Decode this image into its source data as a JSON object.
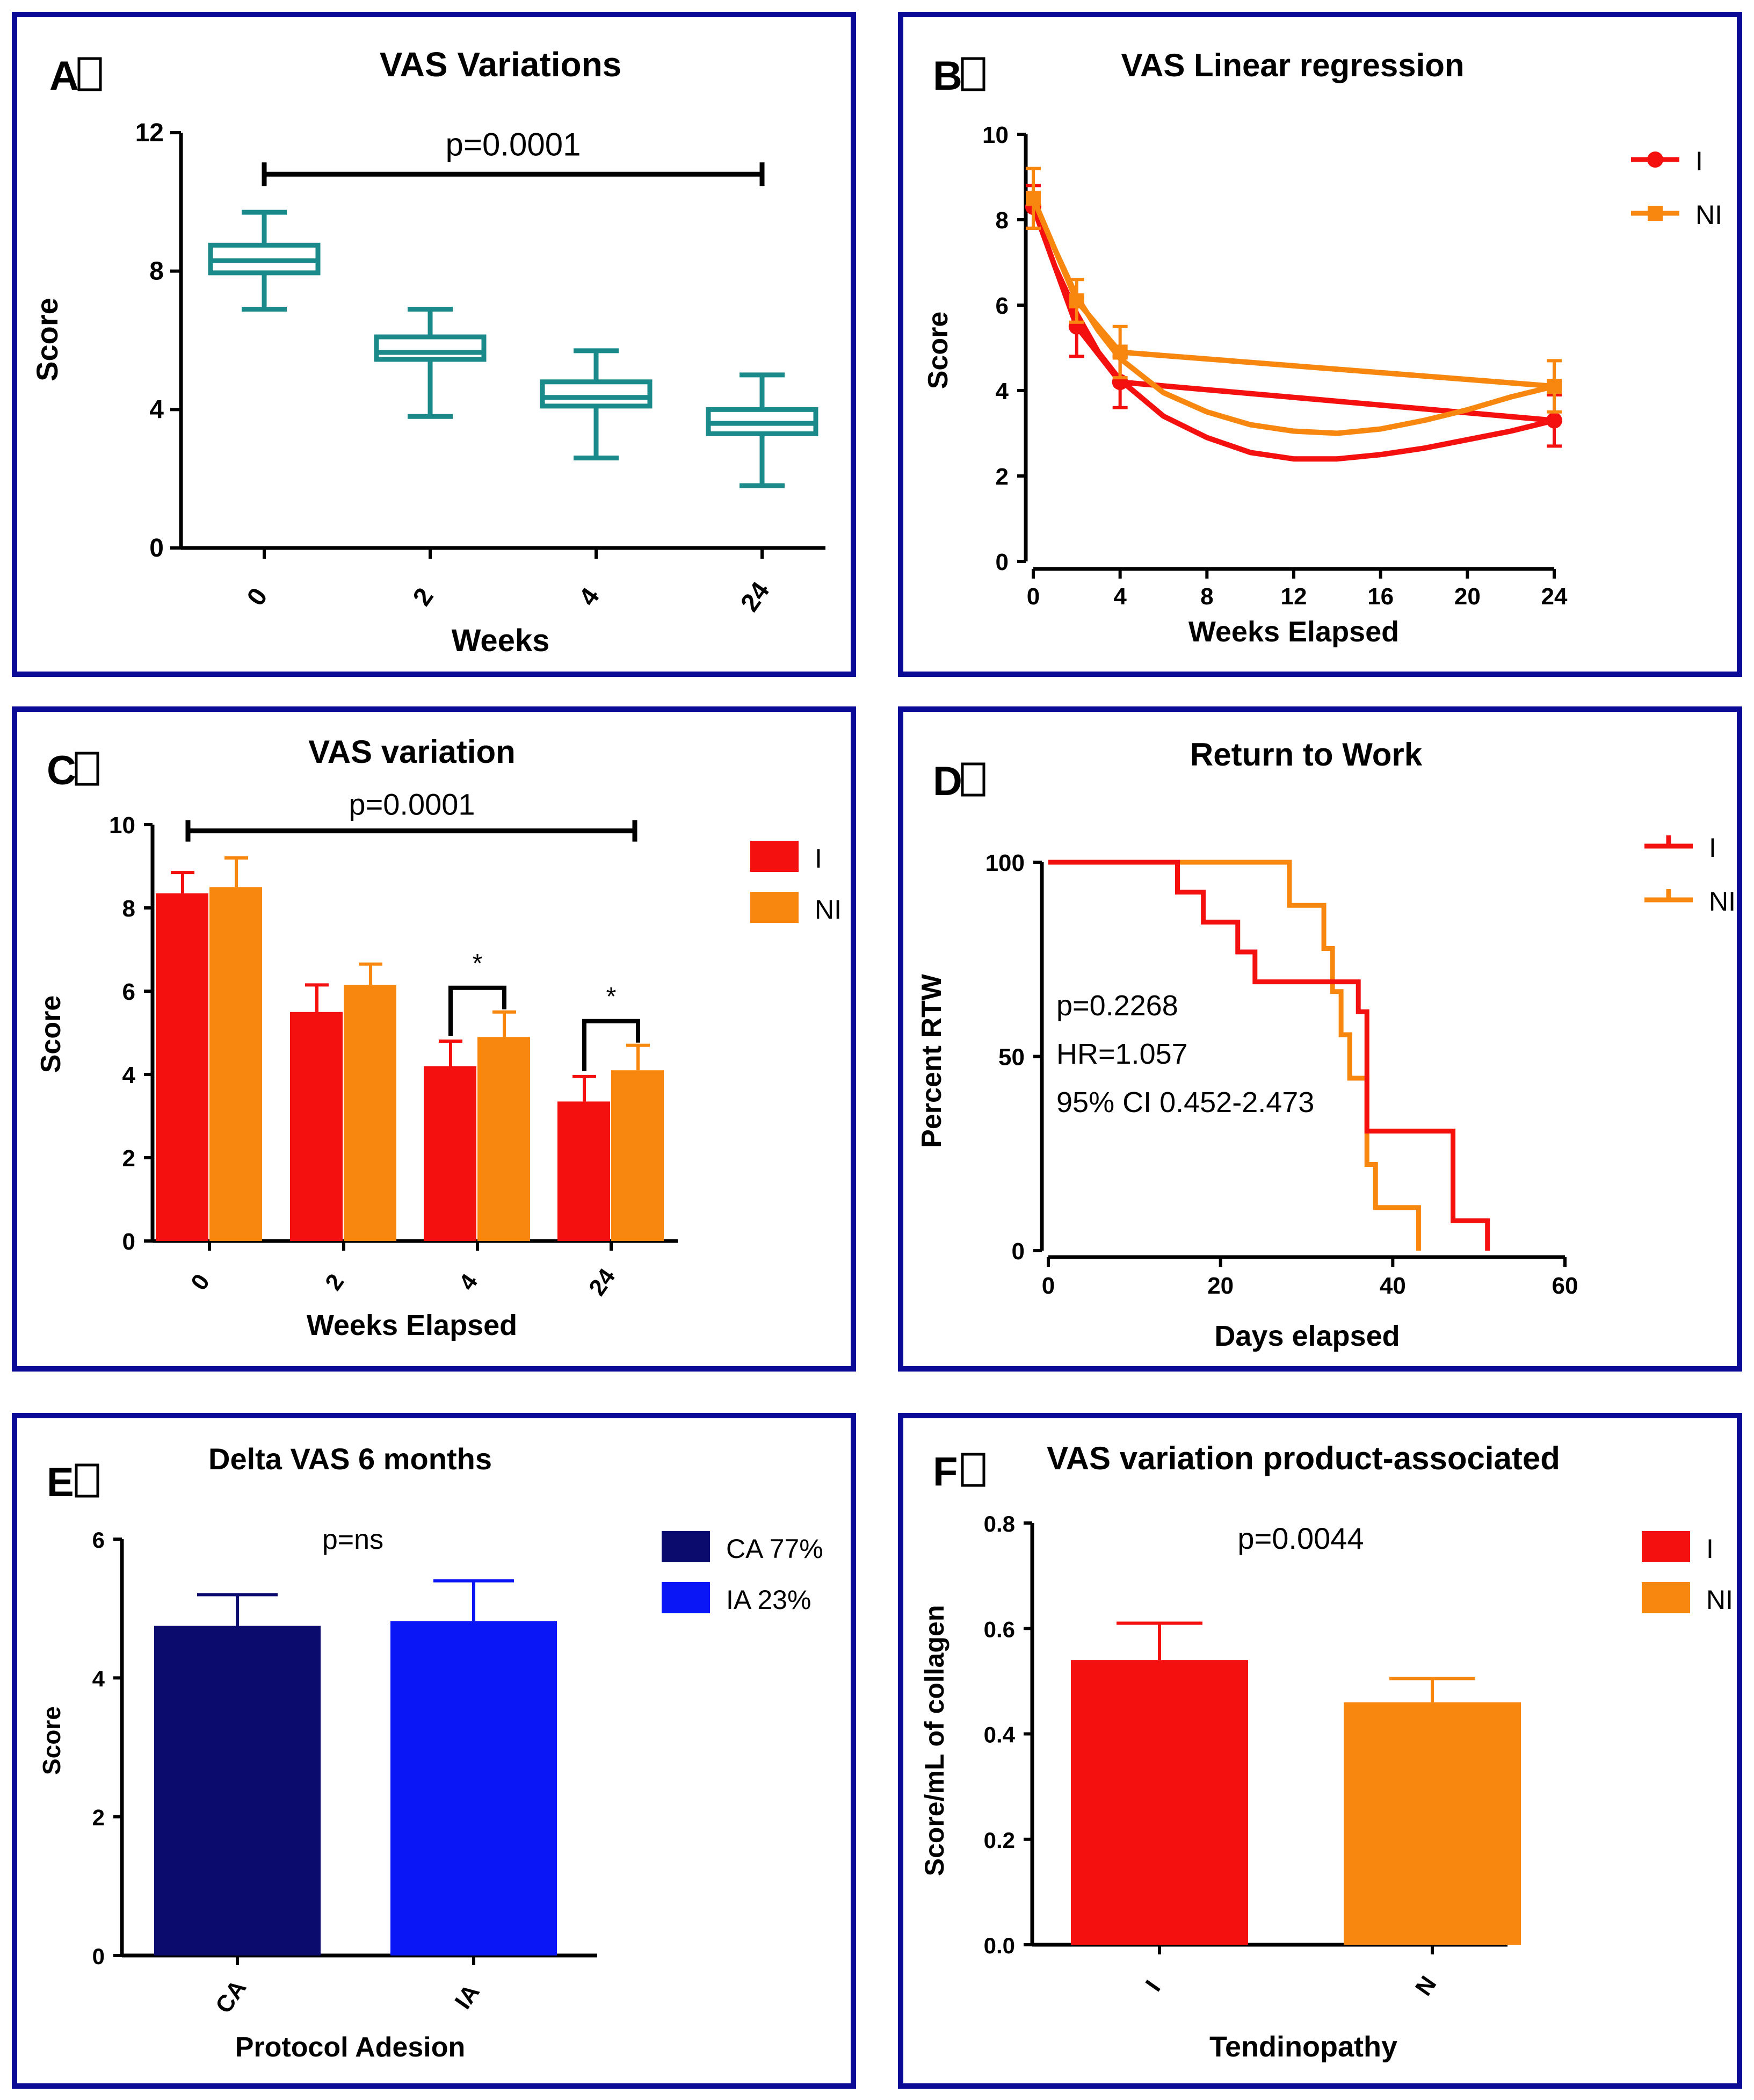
{
  "colors": {
    "frame": "#0a0a96",
    "teal": "#1a8a8a",
    "red": "#f51010",
    "orange": "#f7870f",
    "navy": "#0b0b6e",
    "blue": "#0a16f5",
    "axis": "#000000"
  },
  "chart_data": [
    {
      "panel_letter": "A",
      "type": "box",
      "title": "VAS Variations",
      "xlabel": "Weeks",
      "ylabel": "Score",
      "categories": [
        "0",
        "2",
        "4",
        "24"
      ],
      "boxes": [
        {
          "min": 6.9,
          "q1": 7.95,
          "median": 8.3,
          "q3": 8.75,
          "max": 9.7
        },
        {
          "min": 3.8,
          "q1": 5.45,
          "median": 5.65,
          "q3": 6.1,
          "max": 6.9
        },
        {
          "min": 2.6,
          "q1": 4.1,
          "median": 4.35,
          "q3": 4.8,
          "max": 5.7
        },
        {
          "min": 1.8,
          "q1": 3.3,
          "median": 3.6,
          "q3": 4.0,
          "max": 5.0
        }
      ],
      "ylim": [
        0,
        12
      ],
      "yticks": [
        "0",
        "4",
        "8",
        "12"
      ],
      "bracket": {
        "from": 0,
        "to": 3,
        "y": 10.8,
        "label": "p=0.0001"
      }
    },
    {
      "panel_letter": "B",
      "type": "line",
      "title": "VAS Linear regression",
      "xlabel": "Weeks Elapsed",
      "ylabel": "Score",
      "xlim": [
        0,
        24
      ],
      "ylim": [
        0,
        10
      ],
      "xticks": [
        "0",
        "4",
        "8",
        "12",
        "16",
        "20",
        "24"
      ],
      "yticks": [
        "0",
        "2",
        "4",
        "6",
        "8",
        "10"
      ],
      "legend_position": "top-right",
      "series": [
        {
          "name": "I",
          "color": "#f51010",
          "x": [
            0,
            2,
            4,
            24
          ],
          "y": [
            8.3,
            5.5,
            4.2,
            3.3
          ],
          "err": [
            0.5,
            0.7,
            0.6,
            0.6
          ],
          "fit_x": [
            0,
            1,
            2,
            3,
            4,
            6,
            8,
            10,
            12,
            14,
            16,
            18,
            20,
            22,
            24
          ],
          "fit_y": [
            8.3,
            6.9,
            5.8,
            4.9,
            4.25,
            3.4,
            2.9,
            2.55,
            2.4,
            2.4,
            2.5,
            2.65,
            2.85,
            3.05,
            3.3
          ]
        },
        {
          "name": "NI",
          "color": "#f7870f",
          "x": [
            0,
            2,
            4,
            24
          ],
          "y": [
            8.5,
            6.1,
            4.9,
            4.1
          ],
          "err": [
            0.7,
            0.5,
            0.6,
            0.6
          ],
          "fit_x": [
            0,
            1,
            2,
            3,
            4,
            6,
            8,
            10,
            12,
            14,
            16,
            18,
            20,
            22,
            24
          ],
          "fit_y": [
            8.5,
            7.3,
            6.2,
            5.4,
            4.75,
            3.95,
            3.5,
            3.2,
            3.05,
            3.0,
            3.1,
            3.3,
            3.55,
            3.85,
            4.1
          ]
        }
      ]
    },
    {
      "panel_letter": "C",
      "type": "bar",
      "title": "VAS variation",
      "xlabel": "Weeks Elapsed",
      "ylabel": "Score",
      "categories": [
        "0",
        "2",
        "4",
        "24"
      ],
      "ylim": [
        0,
        10
      ],
      "yticks": [
        "0",
        "2",
        "4",
        "6",
        "8",
        "10"
      ],
      "legend_position": "top-right",
      "series": [
        {
          "name": "I",
          "color": "#f51010",
          "values": [
            8.35,
            5.5,
            4.2,
            3.35
          ],
          "err": [
            0.5,
            0.65,
            0.6,
            0.6
          ]
        },
        {
          "name": "NI",
          "color": "#f7870f",
          "values": [
            8.5,
            6.15,
            4.9,
            4.1
          ],
          "err": [
            0.7,
            0.5,
            0.6,
            0.6
          ]
        }
      ],
      "bracket": {
        "label": "p=0.0001",
        "y": 9.85
      },
      "significance": [
        {
          "category": 2,
          "label": "*"
        },
        {
          "category": 3,
          "label": "*"
        }
      ]
    },
    {
      "panel_letter": "D",
      "type": "line",
      "subtype": "kaplan-meier",
      "title": "Return to Work",
      "xlabel": "Days elapsed",
      "ylabel": "Percent RTW",
      "xlim": [
        0,
        60
      ],
      "ylim": [
        0,
        100
      ],
      "xticks": [
        "0",
        "20",
        "40",
        "60"
      ],
      "yticks": [
        "0",
        "50",
        "100"
      ],
      "legend_position": "top-right",
      "annotations": [
        "p=0.2268",
        "HR=1.057",
        "95% CI  0.452-2.473"
      ],
      "series": [
        {
          "name": "I",
          "color": "#f51010",
          "x": [
            0,
            15,
            18,
            22,
            24,
            28,
            36,
            37,
            38,
            47,
            51
          ],
          "y": [
            100,
            92.3,
            84.6,
            76.9,
            69.2,
            69.2,
            61.5,
            30.8,
            30.8,
            7.7,
            0
          ]
        },
        {
          "name": "NI",
          "color": "#f7870f",
          "x": [
            0,
            28,
            32,
            33,
            34,
            35,
            37,
            38,
            40,
            43
          ],
          "y": [
            100,
            88.9,
            77.8,
            66.7,
            55.6,
            44.4,
            22.2,
            11.1,
            11.1,
            0
          ]
        }
      ]
    },
    {
      "panel_letter": "E",
      "type": "bar",
      "title": "Delta VAS 6 months",
      "xlabel": "Protocol Adesion",
      "ylabel": "Score",
      "categories": [
        "CA",
        "IA"
      ],
      "values": [
        4.75,
        4.82
      ],
      "err": [
        0.45,
        0.58
      ],
      "colors": [
        "#0b0b6e",
        "#0a16f5"
      ],
      "ylim": [
        0,
        6
      ],
      "yticks": [
        "0",
        "2",
        "4",
        "6"
      ],
      "annotation": "p=ns",
      "legend_position": "top-right",
      "legend": [
        {
          "name": "CA 77%",
          "color": "#0b0b6e"
        },
        {
          "name": "IA  23%",
          "color": "#0a16f5"
        }
      ]
    },
    {
      "panel_letter": "F",
      "type": "bar",
      "title": "VAS variation product-associated",
      "xlabel": "Tendinopathy",
      "ylabel": "Score/mL of collagen",
      "categories": [
        "I",
        "N"
      ],
      "values": [
        0.54,
        0.46
      ],
      "err": [
        0.07,
        0.045
      ],
      "colors": [
        "#f51010",
        "#f7870f"
      ],
      "ylim": [
        0,
        0.8
      ],
      "yticks": [
        "0.0",
        "0.2",
        "0.4",
        "0.6",
        "0.8"
      ],
      "annotation": "p=0.0044",
      "legend_position": "top-right",
      "legend": [
        {
          "name": "I",
          "color": "#f51010"
        },
        {
          "name": "NI",
          "color": "#f7870f"
        }
      ]
    }
  ]
}
